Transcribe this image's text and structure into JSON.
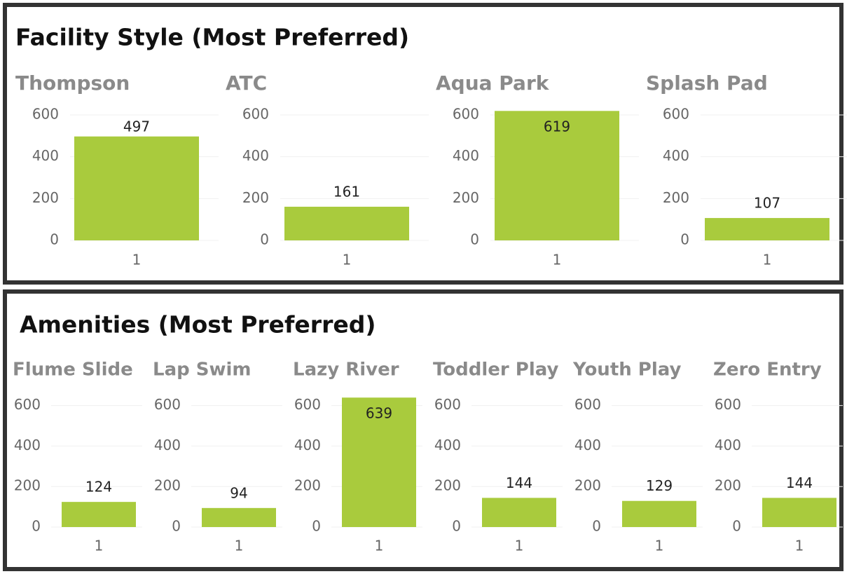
{
  "chart_data": [
    {
      "type": "bar",
      "title": "Facility Style (Most Preferred)",
      "color": "#a9cb3d",
      "ylim": [
        0,
        620
      ],
      "yticks": [
        0,
        200,
        400,
        600
      ],
      "grid": true,
      "facets": [
        {
          "title": "Thompson",
          "categories": [
            "1"
          ],
          "values": [
            497
          ]
        },
        {
          "title": "ATC",
          "categories": [
            "1"
          ],
          "values": [
            161
          ]
        },
        {
          "title": "Aqua Park",
          "categories": [
            "1"
          ],
          "values": [
            619
          ]
        },
        {
          "title": "Splash Pad",
          "categories": [
            "1"
          ],
          "values": [
            107
          ]
        }
      ]
    },
    {
      "type": "bar",
      "title": "Amenities (Most Preferred)",
      "color": "#a9cb3d",
      "ylim": [
        0,
        640
      ],
      "yticks": [
        0,
        200,
        400,
        600
      ],
      "grid": true,
      "facets": [
        {
          "title": "Flume Slide",
          "categories": [
            "1"
          ],
          "values": [
            124
          ]
        },
        {
          "title": "Lap Swim",
          "categories": [
            "1"
          ],
          "values": [
            94
          ]
        },
        {
          "title": "Lazy River",
          "categories": [
            "1"
          ],
          "values": [
            639
          ]
        },
        {
          "title": "Toddler Play",
          "categories": [
            "1"
          ],
          "values": [
            144
          ]
        },
        {
          "title": "Youth Play",
          "categories": [
            "1"
          ],
          "values": [
            129
          ]
        },
        {
          "title": "Zero Entry",
          "categories": [
            "1"
          ],
          "values": [
            144
          ]
        }
      ]
    }
  ]
}
